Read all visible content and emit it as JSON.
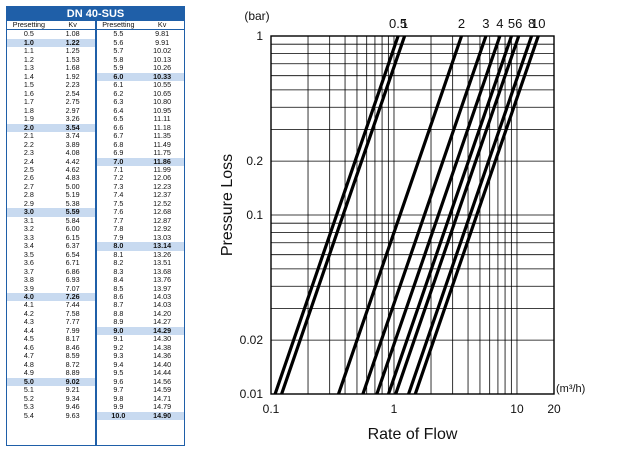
{
  "table": {
    "title": "DN 40-SUS",
    "headers": [
      "Presetting",
      "Kv"
    ],
    "left": [
      [
        "0.5",
        "1.08"
      ],
      [
        "1.0",
        "1.22"
      ],
      [
        "1.1",
        "1.25"
      ],
      [
        "1.2",
        "1.53"
      ],
      [
        "1.3",
        "1.68"
      ],
      [
        "1.4",
        "1.92"
      ],
      [
        "1.5",
        "2.23"
      ],
      [
        "1.6",
        "2.54"
      ],
      [
        "1.7",
        "2.75"
      ],
      [
        "1.8",
        "2.97"
      ],
      [
        "1.9",
        "3.26"
      ],
      [
        "2.0",
        "3.54"
      ],
      [
        "2.1",
        "3.74"
      ],
      [
        "2.2",
        "3.89"
      ],
      [
        "2.3",
        "4.08"
      ],
      [
        "2.4",
        "4.42"
      ],
      [
        "2.5",
        "4.62"
      ],
      [
        "2.6",
        "4.83"
      ],
      [
        "2.7",
        "5.00"
      ],
      [
        "2.8",
        "5.19"
      ],
      [
        "2.9",
        "5.38"
      ],
      [
        "3.0",
        "5.59"
      ],
      [
        "3.1",
        "5.84"
      ],
      [
        "3.2",
        "6.00"
      ],
      [
        "3.3",
        "6.15"
      ],
      [
        "3.4",
        "6.37"
      ],
      [
        "3.5",
        "6.54"
      ],
      [
        "3.6",
        "6.71"
      ],
      [
        "3.7",
        "6.86"
      ],
      [
        "3.8",
        "6.93"
      ],
      [
        "3.9",
        "7.07"
      ],
      [
        "4.0",
        "7.26"
      ],
      [
        "4.1",
        "7.44"
      ],
      [
        "4.2",
        "7.58"
      ],
      [
        "4.3",
        "7.77"
      ],
      [
        "4.4",
        "7.99"
      ],
      [
        "4.5",
        "8.17"
      ],
      [
        "4.6",
        "8.46"
      ],
      [
        "4.7",
        "8.59"
      ],
      [
        "4.8",
        "8.72"
      ],
      [
        "4.9",
        "8.89"
      ],
      [
        "5.0",
        "9.02"
      ],
      [
        "5.1",
        "9.21"
      ],
      [
        "5.2",
        "9.34"
      ],
      [
        "5.3",
        "9.46"
      ],
      [
        "5.4",
        "9.63"
      ]
    ],
    "right": [
      [
        "5.5",
        "9.81"
      ],
      [
        "5.6",
        "9.91"
      ],
      [
        "5.7",
        "10.02"
      ],
      [
        "5.8",
        "10.13"
      ],
      [
        "5.9",
        "10.26"
      ],
      [
        "6.0",
        "10.33"
      ],
      [
        "6.1",
        "10.55"
      ],
      [
        "6.2",
        "10.65"
      ],
      [
        "6.3",
        "10.80"
      ],
      [
        "6.4",
        "10.95"
      ],
      [
        "6.5",
        "11.11"
      ],
      [
        "6.6",
        "11.18"
      ],
      [
        "6.7",
        "11.35"
      ],
      [
        "6.8",
        "11.49"
      ],
      [
        "6.9",
        "11.75"
      ],
      [
        "7.0",
        "11.86"
      ],
      [
        "7.1",
        "11.99"
      ],
      [
        "7.2",
        "12.06"
      ],
      [
        "7.3",
        "12.23"
      ],
      [
        "7.4",
        "12.37"
      ],
      [
        "7.5",
        "12.52"
      ],
      [
        "7.6",
        "12.68"
      ],
      [
        "7.7",
        "12.87"
      ],
      [
        "7.8",
        "12.92"
      ],
      [
        "7.9",
        "13.03"
      ],
      [
        "8.0",
        "13.14"
      ],
      [
        "8.1",
        "13.26"
      ],
      [
        "8.2",
        "13.51"
      ],
      [
        "8.3",
        "13.68"
      ],
      [
        "8.4",
        "13.76"
      ],
      [
        "8.5",
        "13.97"
      ],
      [
        "8.6",
        "14.03"
      ],
      [
        "8.7",
        "14.03"
      ],
      [
        "8.8",
        "14.20"
      ],
      [
        "8.9",
        "14.27"
      ],
      [
        "9.0",
        "14.29"
      ],
      [
        "9.1",
        "14.30"
      ],
      [
        "9.2",
        "14.38"
      ],
      [
        "9.3",
        "14.36"
      ],
      [
        "9.4",
        "14.40"
      ],
      [
        "9.5",
        "14.44"
      ],
      [
        "9.6",
        "14.56"
      ],
      [
        "9.7",
        "14.59"
      ],
      [
        "9.8",
        "14.71"
      ],
      [
        "9.9",
        "14.79"
      ],
      [
        "10.0",
        "14.90"
      ]
    ],
    "highlight": [
      "1.0",
      "2.0",
      "3.0",
      "4.0",
      "5.0",
      "6.0",
      "7.0",
      "8.0",
      "9.0",
      "10.0"
    ],
    "colors": {
      "header": "#1f5fa8",
      "highlight": "#c8daf0"
    }
  },
  "chart_data": {
    "type": "line",
    "x_scale": "log",
    "y_scale": "log",
    "xlim": [
      0.1,
      20
    ],
    "ylim": [
      0.01,
      1
    ],
    "xlabel": "Rate of Flow",
    "ylabel": "Pressure Loss",
    "x_unit": "(m³/h)",
    "y_unit": "(bar)",
    "x_ticks": [
      {
        "v": 0.1,
        "label": "0.1"
      },
      {
        "v": 1,
        "label": "1"
      },
      {
        "v": 10,
        "label": "10"
      },
      {
        "v": 20,
        "label": "20"
      }
    ],
    "y_ticks": [
      {
        "v": 0.01,
        "label": "0.01"
      },
      {
        "v": 0.02,
        "label": "0.02"
      },
      {
        "v": 0.1,
        "label": "0.1"
      },
      {
        "v": 0.2,
        "label": "0.2"
      },
      {
        "v": 1,
        "label": "1"
      }
    ],
    "grid": true,
    "series": [
      {
        "name": "0.5",
        "kv": 1.08
      },
      {
        "name": "1",
        "kv": 1.22
      },
      {
        "name": "2",
        "kv": 3.54
      },
      {
        "name": "3",
        "kv": 5.59
      },
      {
        "name": "4",
        "kv": 7.26
      },
      {
        "name": "5",
        "kv": 9.02
      },
      {
        "name": "6",
        "kv": 10.33
      },
      {
        "name": "8",
        "kv": 13.14
      },
      {
        "name": "10",
        "kv": 14.9
      }
    ]
  }
}
